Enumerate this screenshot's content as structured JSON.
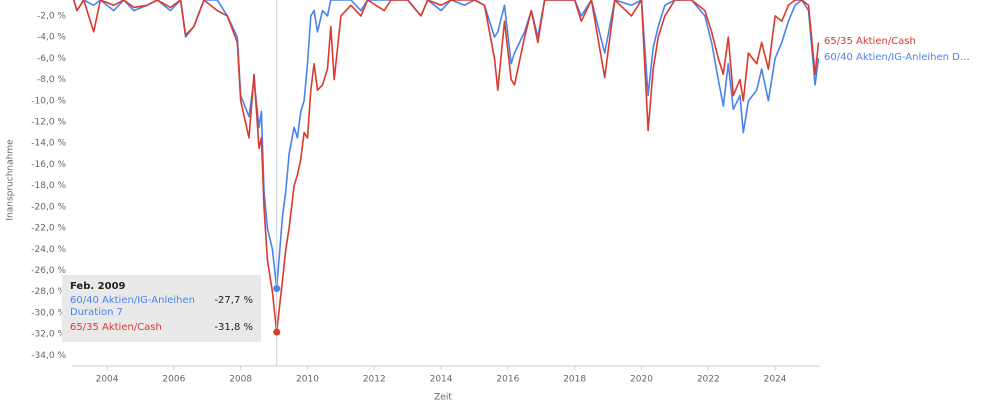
{
  "chart_data": {
    "type": "line",
    "x_label": "Zeit",
    "y_label": "Inanspruchnahme",
    "x": [
      2003.0,
      2003.1,
      2003.3,
      2003.6,
      2003.8,
      2004.2,
      2004.5,
      2004.8,
      2005.2,
      2005.5,
      2005.9,
      2006.2,
      2006.35,
      2006.6,
      2006.9,
      2007.3,
      2007.6,
      2007.9,
      2008.0,
      2008.25,
      2008.4,
      2008.55,
      2008.62,
      2008.7,
      2008.8,
      2008.95,
      2009.08,
      2009.25,
      2009.35,
      2009.45,
      2009.6,
      2009.7,
      2009.8,
      2009.9,
      2010.0,
      2010.1,
      2010.2,
      2010.3,
      2010.45,
      2010.6,
      2010.7,
      2010.8,
      2011.0,
      2011.3,
      2011.6,
      2011.8,
      2012.3,
      2012.5,
      2013.0,
      2013.4,
      2013.6,
      2014.0,
      2014.3,
      2014.7,
      2015.0,
      2015.3,
      2015.6,
      2015.7,
      2015.9,
      2016.1,
      2016.2,
      2016.5,
      2016.7,
      2016.9,
      2017.1,
      2018.0,
      2018.2,
      2018.5,
      2018.9,
      2019.2,
      2019.7,
      2020.0,
      2020.2,
      2020.35,
      2020.5,
      2020.7,
      2021.0,
      2021.5,
      2021.9,
      2022.1,
      2022.3,
      2022.45,
      2022.6,
      2022.75,
      2022.95,
      2023.05,
      2023.2,
      2023.45,
      2023.6,
      2023.8,
      2024.0,
      2024.2,
      2024.4,
      2024.6,
      2024.8,
      2025.0,
      2025.2,
      2025.3
    ],
    "series": [
      {
        "name": "60/40 Aktien/IG-Anleihen Duration 7",
        "color": "#4a82ee",
        "values": [
          -0.5,
          -1.5,
          -0.5,
          -1.0,
          -0.5,
          -1.5,
          -0.5,
          -1.5,
          -1.0,
          -0.5,
          -1.5,
          -0.5,
          -4.0,
          -3.0,
          -0.5,
          -0.5,
          -2.0,
          -4.0,
          -9.5,
          -11.5,
          -8.0,
          -12.5,
          -11.0,
          -18.5,
          -22.0,
          -24.0,
          -27.7,
          -21.0,
          -18.5,
          -15.0,
          -12.5,
          -13.5,
          -11.0,
          -10.0,
          -6.5,
          -2.0,
          -1.5,
          -3.5,
          -1.5,
          -2.0,
          -0.5,
          -0.5,
          -0.5,
          -0.5,
          -1.5,
          -0.5,
          -0.5,
          -0.5,
          -0.5,
          -2.0,
          -0.5,
          -1.5,
          -0.5,
          -1.0,
          -0.5,
          -1.0,
          -4.0,
          -3.5,
          -1.0,
          -6.5,
          -5.5,
          -3.5,
          -1.5,
          -4.0,
          -0.5,
          -0.5,
          -2.0,
          -0.5,
          -5.5,
          -0.5,
          -1.0,
          -0.5,
          -9.5,
          -5.0,
          -3.0,
          -1.0,
          -0.5,
          -0.5,
          -2.0,
          -4.5,
          -8.0,
          -10.5,
          -6.5,
          -10.8,
          -9.5,
          -13.0,
          -10.0,
          -9.0,
          -7.0,
          -10.0,
          -6.0,
          -4.5,
          -2.5,
          -1.0,
          -0.5,
          -1.5,
          -8.5,
          -6.0
        ]
      },
      {
        "name": "65/35 Aktien/Cash",
        "color": "#da3a2e",
        "values": [
          -0.5,
          -1.5,
          -0.5,
          -3.5,
          -0.5,
          -1.0,
          -0.5,
          -1.2,
          -1.0,
          -0.5,
          -1.2,
          -0.5,
          -3.8,
          -3.0,
          -0.5,
          -1.5,
          -2.0,
          -4.5,
          -10.0,
          -13.5,
          -7.5,
          -14.5,
          -13.5,
          -20.0,
          -25.0,
          -28.0,
          -31.8,
          -27.0,
          -24.0,
          -22.0,
          -18.0,
          -17.0,
          -15.5,
          -13.0,
          -13.5,
          -9.0,
          -6.5,
          -9.0,
          -8.5,
          -7.0,
          -3.0,
          -8.0,
          -2.0,
          -1.0,
          -2.0,
          -0.5,
          -1.5,
          -0.5,
          -0.5,
          -2.0,
          -0.5,
          -1.0,
          -0.5,
          -0.5,
          -0.5,
          -1.0,
          -6.0,
          -9.0,
          -2.5,
          -8.0,
          -8.5,
          -4.0,
          -1.5,
          -4.5,
          -0.5,
          -0.5,
          -2.5,
          -0.5,
          -7.8,
          -0.5,
          -2.0,
          -0.5,
          -12.8,
          -7.0,
          -4.0,
          -2.0,
          -0.5,
          -0.5,
          -1.5,
          -3.5,
          -6.0,
          -7.5,
          -4.0,
          -9.5,
          -8.0,
          -10.0,
          -5.5,
          -6.5,
          -4.5,
          -7.0,
          -2.0,
          -2.5,
          -1.0,
          -0.5,
          -0.5,
          -1.0,
          -7.5,
          -4.5
        ]
      }
    ],
    "xlim": [
      2002.95,
      2025.35
    ],
    "ylim": [
      -35,
      -0.5
    ],
    "xticks": [
      2004,
      2006,
      2008,
      2010,
      2012,
      2014,
      2016,
      2018,
      2020,
      2022,
      2024
    ],
    "yticks": [
      {
        "value": -2,
        "label": "-2,0 %"
      },
      {
        "value": -4,
        "label": "-4,0 %"
      },
      {
        "value": -6,
        "label": "-6,0 %"
      },
      {
        "value": -8,
        "label": "-8,0 %"
      },
      {
        "value": -10,
        "label": "-10,0 %"
      },
      {
        "value": -12,
        "label": "-12,0 %"
      },
      {
        "value": -14,
        "label": "-14,0 %"
      },
      {
        "value": -16,
        "label": "-16,0 %"
      },
      {
        "value": -18,
        "label": "-18,0 %"
      },
      {
        "value": -20,
        "label": "-20,0 %"
      },
      {
        "value": -22,
        "label": "-22,0 %"
      },
      {
        "value": -24,
        "label": "-24,0 %"
      },
      {
        "value": -26,
        "label": "-26,0 %"
      },
      {
        "value": -28,
        "label": "-28,0 %"
      },
      {
        "value": -30,
        "label": "-30,0 %"
      },
      {
        "value": -32,
        "label": "-32,0 %"
      },
      {
        "value": -34,
        "label": "-34,0 %"
      }
    ],
    "grid": false,
    "tooltip": {
      "title": "Feb. 2009",
      "values": [
        {
          "value": -27.7,
          "label": "-27,7 %"
        },
        {
          "value": -31.8,
          "label": "-31,8 %"
        }
      ]
    }
  }
}
